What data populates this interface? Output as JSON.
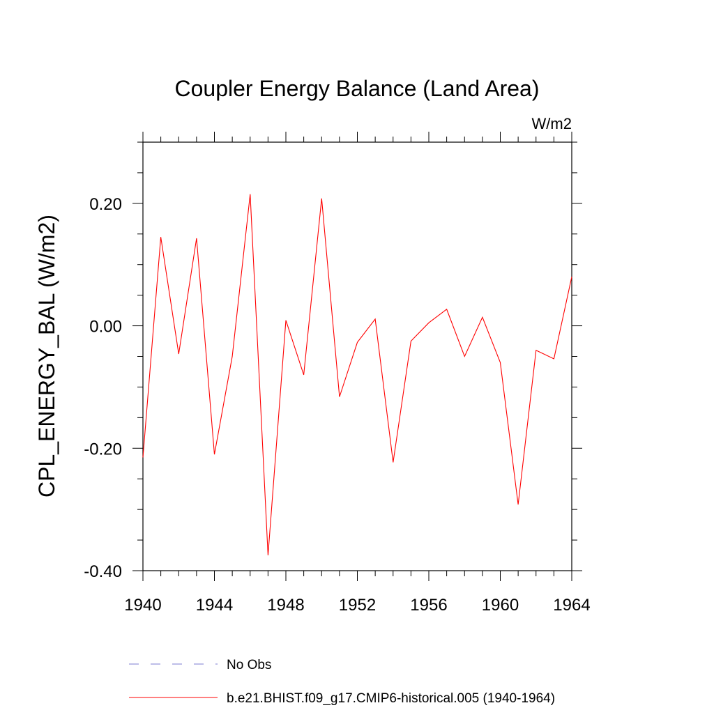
{
  "chart_data": {
    "type": "line",
    "title": "Coupler Energy Balance (Land Area)",
    "units": "W/m2",
    "ylabel": "CPL_ENERGY_BAL  (W/m2)",
    "xlabel": "",
    "xlim": [
      1940,
      1964
    ],
    "ylim": [
      -0.4,
      0.3
    ],
    "x_ticks": [
      1940,
      1944,
      1948,
      1952,
      1956,
      1960,
      1964
    ],
    "x_tick_labels": [
      "1940",
      "1944",
      "1948",
      "1952",
      "1956",
      "1960",
      "1964"
    ],
    "y_ticks": [
      -0.4,
      -0.2,
      0.0,
      0.2
    ],
    "y_tick_labels": [
      "-0.40",
      "-0.20",
      "0.00",
      "0.20"
    ],
    "grid": false,
    "legend_position": "bottom",
    "series": [
      {
        "name": "No Obs",
        "color": "#7b7bd0",
        "style": "dashed",
        "x": [],
        "values": []
      },
      {
        "name": "b.e21.BHIST.f09_g17.CMIP6-historical.005 (1940-1964)",
        "color": "#ff0000",
        "style": "solid",
        "x": [
          1940,
          1941,
          1942,
          1943,
          1944,
          1945,
          1946,
          1947,
          1948,
          1949,
          1950,
          1951,
          1952,
          1953,
          1954,
          1955,
          1956,
          1957,
          1958,
          1959,
          1960,
          1961,
          1962,
          1963,
          1964
        ],
        "values": [
          -0.215,
          0.145,
          -0.046,
          0.143,
          -0.21,
          -0.05,
          0.215,
          -0.375,
          0.009,
          -0.08,
          0.208,
          -0.116,
          -0.027,
          0.011,
          -0.223,
          -0.025,
          0.005,
          0.027,
          -0.05,
          0.014,
          -0.06,
          -0.292,
          -0.04,
          -0.054,
          0.08
        ]
      }
    ]
  }
}
